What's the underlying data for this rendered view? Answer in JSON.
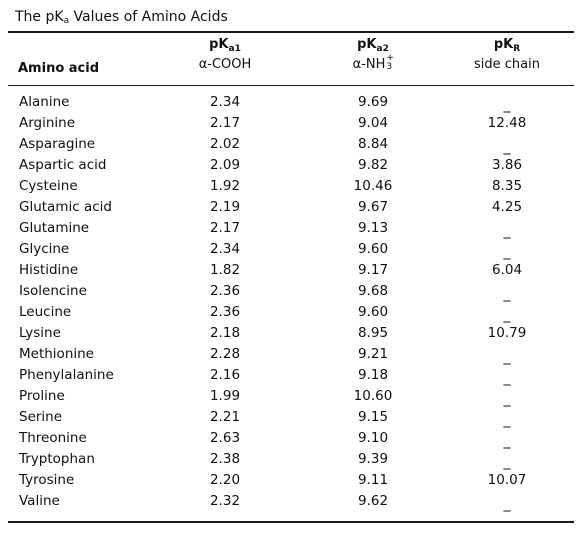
{
  "title": "The pKa Values of Amino Acids",
  "headers": {
    "amino_acid": "Amino acid",
    "pka1_main": "pK",
    "pka1_sub": "a1",
    "pka1_group": "α-COOH",
    "pka2_main": "pK",
    "pka2_sub": "a2",
    "pka2_group": "α-NH",
    "pka2_group_sub": "3",
    "pka2_group_sup": "+",
    "pkr_main": "pK",
    "pkr_sub": "R",
    "pkr_group": "side chain"
  },
  "rows": [
    {
      "name": "Alanine",
      "pka1": "2.34",
      "pka2": "9.69",
      "pkr": "_"
    },
    {
      "name": "Arginine",
      "pka1": "2.17",
      "pka2": "9.04",
      "pkr": "12.48"
    },
    {
      "name": "Asparagine",
      "pka1": "2.02",
      "pka2": "8.84",
      "pkr": "_"
    },
    {
      "name": "Aspartic acid",
      "pka1": "2.09",
      "pka2": "9.82",
      "pkr": "3.86"
    },
    {
      "name": "Cysteine",
      "pka1": "1.92",
      "pka2": "10.46",
      "pkr": "8.35"
    },
    {
      "name": "Glutamic acid",
      "pka1": "2.19",
      "pka2": "9.67",
      "pkr": "4.25"
    },
    {
      "name": "Glutamine",
      "pka1": "2.17",
      "pka2": "9.13",
      "pkr": "_"
    },
    {
      "name": "Glycine",
      "pka1": "2.34",
      "pka2": "9.60",
      "pkr": "_"
    },
    {
      "name": "Histidine",
      "pka1": "1.82",
      "pka2": "9.17",
      "pkr": "6.04"
    },
    {
      "name": "Isolencine",
      "pka1": "2.36",
      "pka2": "9.68",
      "pkr": "_"
    },
    {
      "name": "Leucine",
      "pka1": "2.36",
      "pka2": "9.60",
      "pkr": "_"
    },
    {
      "name": "Lysine",
      "pka1": "2.18",
      "pka2": "8.95",
      "pkr": "10.79"
    },
    {
      "name": "Methionine",
      "pka1": "2.28",
      "pka2": "9.21",
      "pkr": "_"
    },
    {
      "name": "Phenylalanine",
      "pka1": "2.16",
      "pka2": "9.18",
      "pkr": "_"
    },
    {
      "name": "Proline",
      "pka1": "1.99",
      "pka2": "10.60",
      "pkr": "_"
    },
    {
      "name": "Serine",
      "pka1": "2.21",
      "pka2": "9.15",
      "pkr": "_"
    },
    {
      "name": "Threonine",
      "pka1": "2.63",
      "pka2": "9.10",
      "pkr": "_"
    },
    {
      "name": "Tryptophan",
      "pka1": "2.38",
      "pka2": "9.39",
      "pkr": "_"
    },
    {
      "name": "Tyrosine",
      "pka1": "2.20",
      "pka2": "9.11",
      "pkr": "10.07"
    },
    {
      "name": "Valine",
      "pka1": "2.32",
      "pka2": "9.62",
      "pkr": "_"
    }
  ]
}
